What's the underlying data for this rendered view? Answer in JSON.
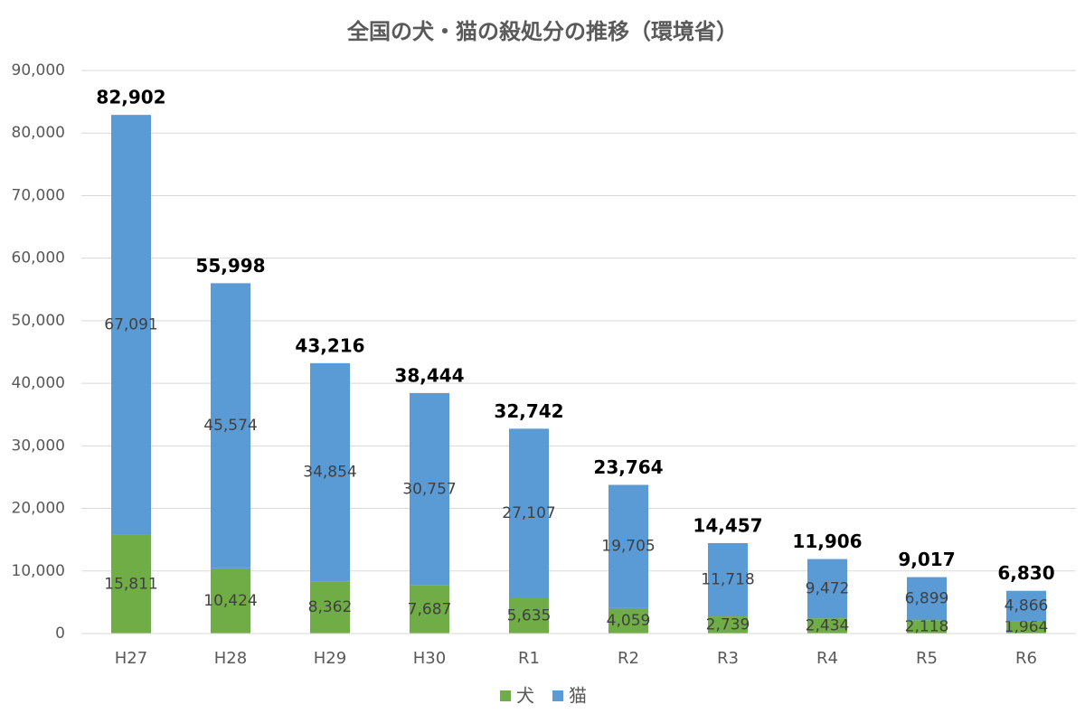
{
  "chart_data": {
    "type": "stacked_bar",
    "title": "全国の犬・猫の殺処分の推移（環境省）",
    "categories": [
      "H27",
      "H28",
      "H29",
      "H30",
      "R1",
      "R2",
      "R3",
      "R4",
      "R5",
      "R6"
    ],
    "series": [
      {
        "name": "犬",
        "color": "#70ad47",
        "values": [
          15811,
          10424,
          8362,
          7687,
          5635,
          4059,
          2739,
          2434,
          2118,
          1964
        ],
        "value_labels": [
          "15,811",
          "10,424",
          "8,362",
          "7,687",
          "5,635",
          "4,059",
          "2,739",
          "2,434",
          "2,118",
          "1,964"
        ]
      },
      {
        "name": "猫",
        "color": "#5b9bd5",
        "values": [
          67091,
          45574,
          34854,
          30757,
          27107,
          19705,
          11718,
          9472,
          6899,
          4866
        ],
        "value_labels": [
          "67,091",
          "45,574",
          "34,854",
          "30,757",
          "27,107",
          "19,705",
          "11,718",
          "9,472",
          "6,899",
          "4,866"
        ]
      }
    ],
    "totals": {
      "values": [
        82902,
        55998,
        43216,
        38444,
        32742,
        23764,
        14457,
        11906,
        9017,
        6830
      ],
      "value_labels": [
        "82,902",
        "55,998",
        "43,216",
        "38,444",
        "32,742",
        "23,764",
        "14,457",
        "11,906",
        "9,017",
        "6,830"
      ]
    },
    "ylim": [
      0,
      90000
    ],
    "yticks": [
      0,
      {
        "value": 10000,
        "label": "10,000"
      },
      {
        "value": 20000,
        "label": "20,000"
      },
      {
        "value": 30000,
        "label": "30,000"
      },
      {
        "value": 40000,
        "label": "40,000"
      },
      {
        "value": 50000,
        "label": "50,000"
      },
      {
        "value": 60000,
        "label": "60,000"
      },
      {
        "value": 70000,
        "label": "70,000"
      },
      {
        "value": 80000,
        "label": "80,000"
      },
      {
        "value": 90000,
        "label": "90,000"
      }
    ],
    "grid": true,
    "legend": "bottom"
  }
}
